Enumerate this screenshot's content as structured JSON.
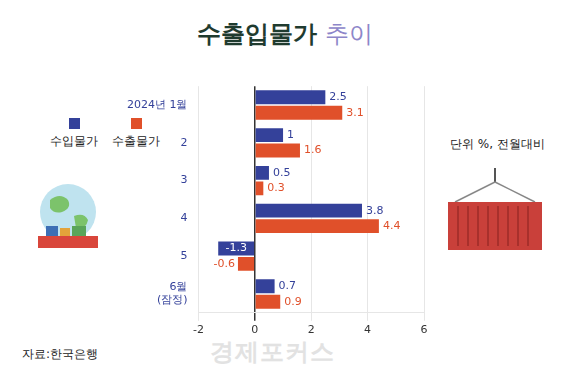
{
  "chart_data": {
    "type": "bar",
    "orientation": "horizontal",
    "title": "수출입물가 추이",
    "unit_note": "단위 %, 전월대비",
    "source": "자료:한국은행",
    "watermark": "경제포커스",
    "categories": [
      "2024년 1월",
      "2",
      "3",
      "4",
      "5",
      [
        "6월",
        "(잠정)"
      ]
    ],
    "series": [
      {
        "name": "수입물가",
        "color": "#34419a",
        "values": [
          2.5,
          1,
          0.5,
          3.8,
          -1.3,
          0.7
        ]
      },
      {
        "name": "수출물가",
        "color": "#e0502a",
        "values": [
          3.1,
          1.6,
          0.3,
          4.4,
          -0.6,
          0.9
        ]
      }
    ],
    "xlim": [
      -2,
      6
    ],
    "xticks": [
      -2,
      0,
      2,
      4,
      6
    ],
    "grid": true,
    "data_labels": true,
    "legend": "left"
  }
}
